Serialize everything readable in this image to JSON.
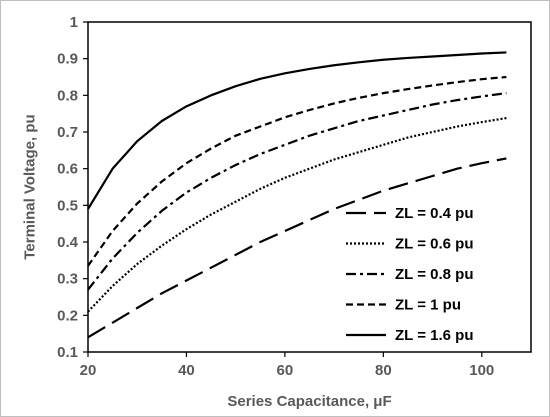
{
  "chart_data": {
    "type": "line",
    "title": "",
    "xlabel": "Series Capacitance, μF",
    "ylabel": "Terminal Voltage, pu",
    "xlim": [
      20,
      110
    ],
    "ylim": [
      0.1,
      1.0
    ],
    "x_ticks": [
      "20",
      "40",
      "60",
      "80",
      "100"
    ],
    "y_ticks": [
      "0.1",
      "0.2",
      "0.3",
      "0.4",
      "0.5",
      "0.6",
      "0.7",
      "0.8",
      "0.9",
      "1"
    ],
    "grid": false,
    "legend_position": "bottom-right",
    "x": [
      20,
      25,
      30,
      35,
      40,
      45,
      50,
      55,
      60,
      65,
      70,
      75,
      80,
      85,
      90,
      95,
      100,
      105
    ],
    "series": [
      {
        "name": "ZL = 0.4 pu",
        "dash": "long-dash",
        "values": [
          0.14,
          0.18,
          0.22,
          0.26,
          0.295,
          0.33,
          0.365,
          0.4,
          0.43,
          0.46,
          0.49,
          0.515,
          0.54,
          0.56,
          0.58,
          0.6,
          0.615,
          0.628
        ]
      },
      {
        "name": "ZL = 0.6 pu",
        "dash": "dotted",
        "values": [
          0.21,
          0.28,
          0.34,
          0.39,
          0.435,
          0.475,
          0.51,
          0.545,
          0.575,
          0.6,
          0.625,
          0.645,
          0.665,
          0.685,
          0.7,
          0.715,
          0.727,
          0.738
        ]
      },
      {
        "name": "ZL = 0.8 pu",
        "dash": "dash-dot",
        "values": [
          0.27,
          0.355,
          0.425,
          0.485,
          0.535,
          0.575,
          0.61,
          0.64,
          0.665,
          0.69,
          0.71,
          0.73,
          0.745,
          0.76,
          0.775,
          0.787,
          0.797,
          0.806
        ]
      },
      {
        "name": "ZL = 1 pu",
        "dash": "dashed",
        "values": [
          0.335,
          0.43,
          0.505,
          0.565,
          0.615,
          0.655,
          0.69,
          0.715,
          0.74,
          0.76,
          0.778,
          0.793,
          0.806,
          0.817,
          0.827,
          0.836,
          0.844,
          0.85
        ]
      },
      {
        "name": "ZL = 1.6 pu",
        "dash": "solid",
        "values": [
          0.49,
          0.6,
          0.675,
          0.73,
          0.77,
          0.8,
          0.825,
          0.845,
          0.86,
          0.872,
          0.882,
          0.89,
          0.897,
          0.902,
          0.906,
          0.91,
          0.914,
          0.917
        ]
      }
    ]
  }
}
